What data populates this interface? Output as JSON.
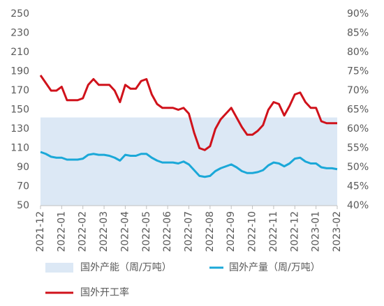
{
  "chart_data": {
    "type": "line",
    "categories": [
      "2021-12",
      null,
      null,
      null,
      "2022-01",
      null,
      null,
      null,
      "2022-02",
      null,
      null,
      null,
      "2022-03",
      null,
      null,
      null,
      "2022-04",
      null,
      null,
      null,
      "2022-05",
      null,
      null,
      null,
      "2022-06",
      null,
      null,
      null,
      "2022-07",
      null,
      null,
      null,
      "2022-08",
      null,
      null,
      null,
      "2022-09",
      null,
      null,
      null,
      "2022-10",
      null,
      null,
      null,
      "2022-11",
      null,
      null,
      null,
      "2022-12",
      null,
      null,
      null,
      "2023-01",
      null,
      null,
      null,
      "2023-02"
    ],
    "series": [
      {
        "name": "国外产能（周/万吨）",
        "type": "area",
        "color": "#dce8f5",
        "values": [
          142,
          142,
          142,
          142,
          142,
          142,
          142,
          142,
          142,
          142,
          142,
          142,
          142,
          142,
          142,
          142,
          142,
          142,
          142,
          142,
          142,
          142,
          142,
          142,
          142,
          142,
          142,
          142,
          142,
          142,
          142,
          142,
          142,
          142,
          142,
          142,
          142,
          142,
          142,
          142,
          142,
          142,
          142,
          142,
          142,
          142,
          142,
          142,
          142,
          142,
          142,
          142,
          142,
          142,
          142,
          142,
          142
        ]
      },
      {
        "name": "国外产量（周/万吨）",
        "type": "line",
        "color": "#1ba8d8",
        "values": [
          106,
          104,
          101,
          100,
          100,
          98,
          98,
          98,
          99,
          103,
          104,
          103,
          103,
          102,
          100,
          97,
          103,
          102,
          102,
          104,
          104,
          100,
          97,
          95,
          95,
          95,
          94,
          96,
          93,
          87,
          81,
          80,
          81,
          86,
          89,
          91,
          93,
          90,
          86,
          84,
          84,
          85,
          87,
          92,
          95,
          94,
          91,
          94,
          99,
          100,
          96,
          94,
          94,
          90,
          89,
          89,
          88
        ]
      },
      {
        "name": "国外开工率",
        "type": "line",
        "color": "#d0121b",
        "axis": "y2",
        "values": [
          74,
          72,
          70,
          70,
          71,
          67.5,
          67.5,
          67.5,
          68,
          71.5,
          73,
          71.5,
          71.5,
          71.5,
          70,
          67,
          71.5,
          70.5,
          70.5,
          72.5,
          73,
          69,
          66.5,
          65.5,
          65.5,
          65.5,
          65,
          65.5,
          64,
          59,
          55,
          54.5,
          55.5,
          60,
          62.5,
          64,
          65.5,
          63,
          60.5,
          58.5,
          58.5,
          59.5,
          61,
          65,
          67,
          66.5,
          63.5,
          66,
          69,
          69.5,
          67,
          65.5,
          65.5,
          62,
          61.5,
          61.5,
          61.5
        ]
      }
    ],
    "ylim": [
      50,
      250
    ],
    "yticks": [
      50,
      70,
      90,
      110,
      130,
      150,
      170,
      190,
      210,
      230,
      250
    ],
    "y2lim": [
      40,
      90
    ],
    "y2ticks": [
      {
        "value": 40,
        "label": "40%"
      },
      {
        "value": 45,
        "label": "45%"
      },
      {
        "value": 50,
        "label": "50%"
      },
      {
        "value": 55,
        "label": "55%"
      },
      {
        "value": 60,
        "label": "60%"
      },
      {
        "value": 65,
        "label": "65%"
      },
      {
        "value": 70,
        "label": "70%"
      },
      {
        "value": 75,
        "label": "75%"
      },
      {
        "value": 80,
        "label": "80%"
      },
      {
        "value": 85,
        "label": "85%"
      },
      {
        "value": 90,
        "label": "90%"
      }
    ]
  }
}
